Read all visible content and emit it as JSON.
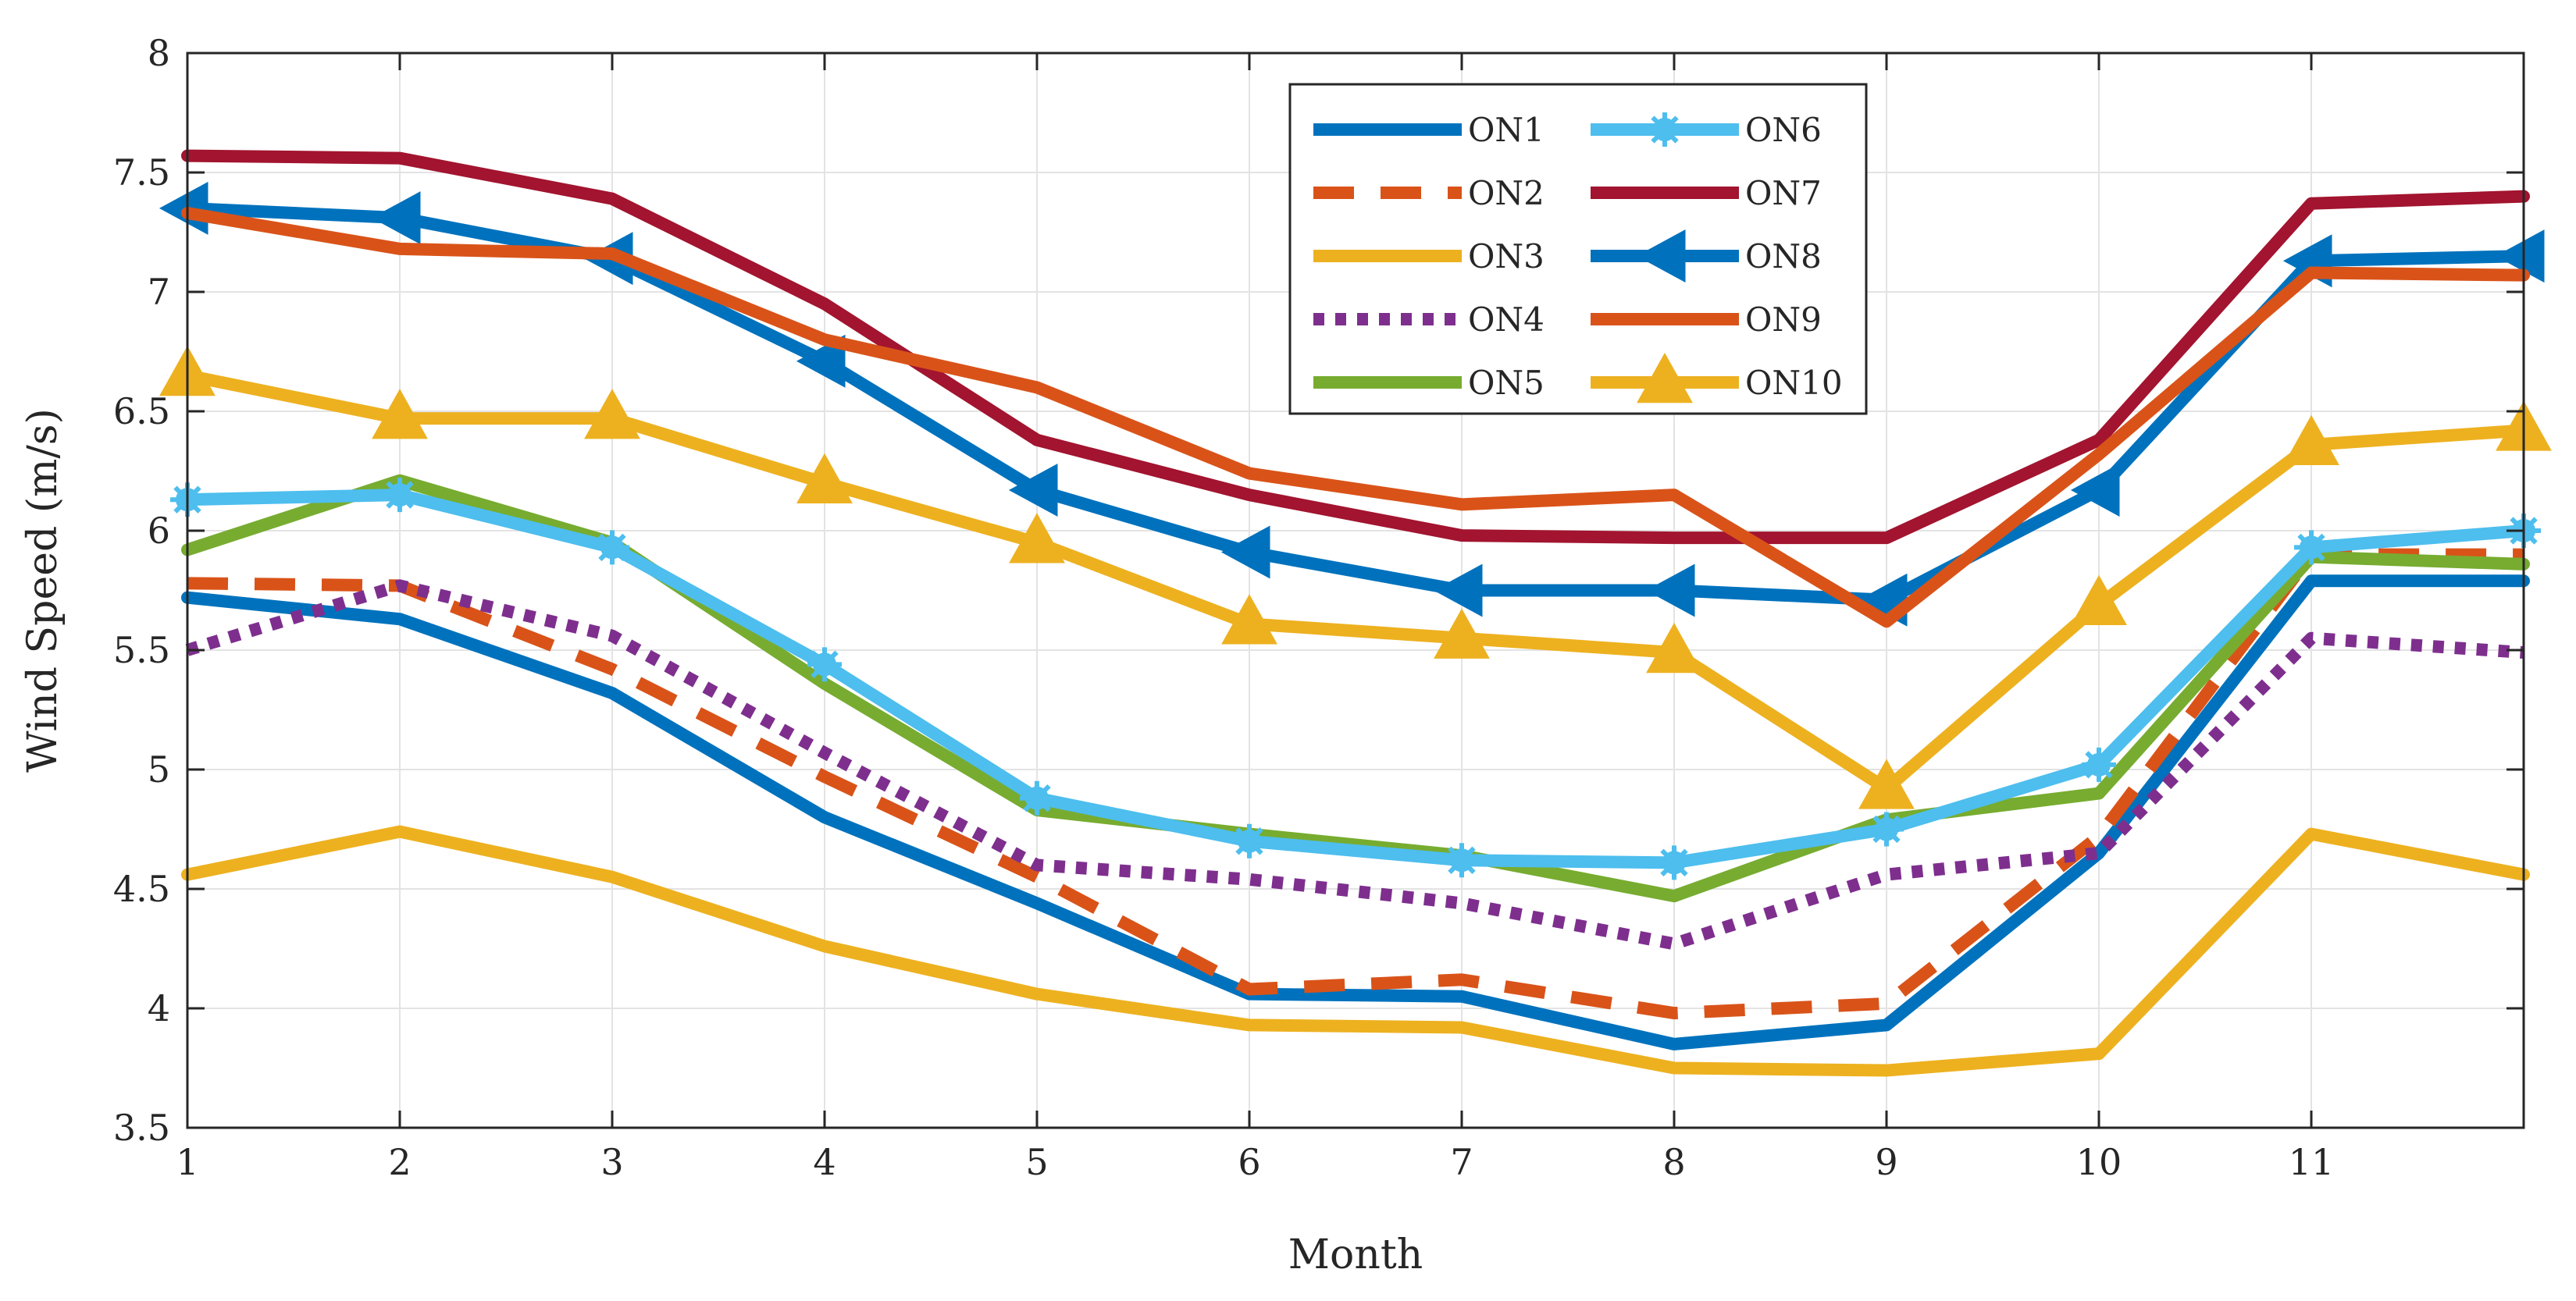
{
  "chart_data": {
    "type": "line",
    "title": "",
    "xlabel": "Month",
    "ylabel": "Wind Speed (m/s)",
    "xlim": [
      1,
      12
    ],
    "ylim": [
      3.5,
      8
    ],
    "xticks": [
      1,
      2,
      3,
      4,
      5,
      6,
      7,
      8,
      9,
      10,
      11
    ],
    "yticks": [
      3.5,
      4,
      4.5,
      5,
      5.5,
      6,
      6.5,
      7,
      7.5,
      8
    ],
    "grid": true,
    "legend_position": "top-center",
    "x": [
      1,
      2,
      3,
      4,
      5,
      6,
      7,
      8,
      9,
      10,
      11,
      12
    ],
    "series": [
      {
        "name": "ON1",
        "color": "#0072BD",
        "style": "solid",
        "marker": "none",
        "values": [
          5.72,
          5.63,
          5.32,
          4.8,
          4.44,
          4.06,
          4.05,
          3.85,
          3.93,
          4.65,
          5.79,
          5.79
        ]
      },
      {
        "name": "ON2",
        "color": "#D95319",
        "style": "dashed",
        "marker": "none",
        "values": [
          5.78,
          5.77,
          5.42,
          4.97,
          4.55,
          4.08,
          4.12,
          3.98,
          4.02,
          4.72,
          5.9,
          5.9
        ]
      },
      {
        "name": "ON3",
        "color": "#EDB120",
        "style": "solid",
        "marker": "none",
        "values": [
          4.56,
          4.74,
          4.55,
          4.26,
          4.06,
          3.93,
          3.92,
          3.75,
          3.74,
          3.81,
          4.73,
          4.56
        ]
      },
      {
        "name": "ON4",
        "color": "#7E2F8E",
        "style": "dotted",
        "marker": "none",
        "values": [
          5.5,
          5.77,
          5.56,
          5.07,
          4.6,
          4.54,
          4.44,
          4.27,
          4.56,
          4.65,
          5.55,
          5.49
        ]
      },
      {
        "name": "ON5",
        "color": "#77AC30",
        "style": "solid",
        "marker": "none",
        "values": [
          5.92,
          6.21,
          5.95,
          5.36,
          4.83,
          4.73,
          4.64,
          4.47,
          4.79,
          4.9,
          5.89,
          5.86
        ]
      },
      {
        "name": "ON6",
        "color": "#4DBEEE",
        "style": "solid",
        "marker": "star",
        "values": [
          6.13,
          6.15,
          5.93,
          5.44,
          4.88,
          4.7,
          4.62,
          4.61,
          4.75,
          5.02,
          5.93,
          6.0
        ]
      },
      {
        "name": "ON7",
        "color": "#A2142F",
        "style": "solid",
        "marker": "none",
        "values": [
          7.57,
          7.56,
          7.39,
          6.95,
          6.38,
          6.15,
          5.98,
          5.97,
          5.97,
          6.38,
          7.37,
          7.4
        ]
      },
      {
        "name": "ON8",
        "color": "#0072BD",
        "style": "solid",
        "marker": "triangle-left",
        "values": [
          7.35,
          7.31,
          7.14,
          6.71,
          6.17,
          5.91,
          5.75,
          5.75,
          5.71,
          6.17,
          7.13,
          7.15
        ]
      },
      {
        "name": "ON9",
        "color": "#D95319",
        "style": "solid",
        "marker": "none",
        "values": [
          7.33,
          7.18,
          7.16,
          6.8,
          6.6,
          6.24,
          6.11,
          6.15,
          5.62,
          6.32,
          7.08,
          7.07
        ]
      },
      {
        "name": "ON10",
        "color": "#EDB120",
        "style": "solid",
        "marker": "triangle-up",
        "values": [
          6.65,
          6.47,
          6.47,
          6.2,
          5.95,
          5.61,
          5.55,
          5.49,
          4.92,
          5.69,
          6.36,
          6.42
        ]
      }
    ]
  }
}
